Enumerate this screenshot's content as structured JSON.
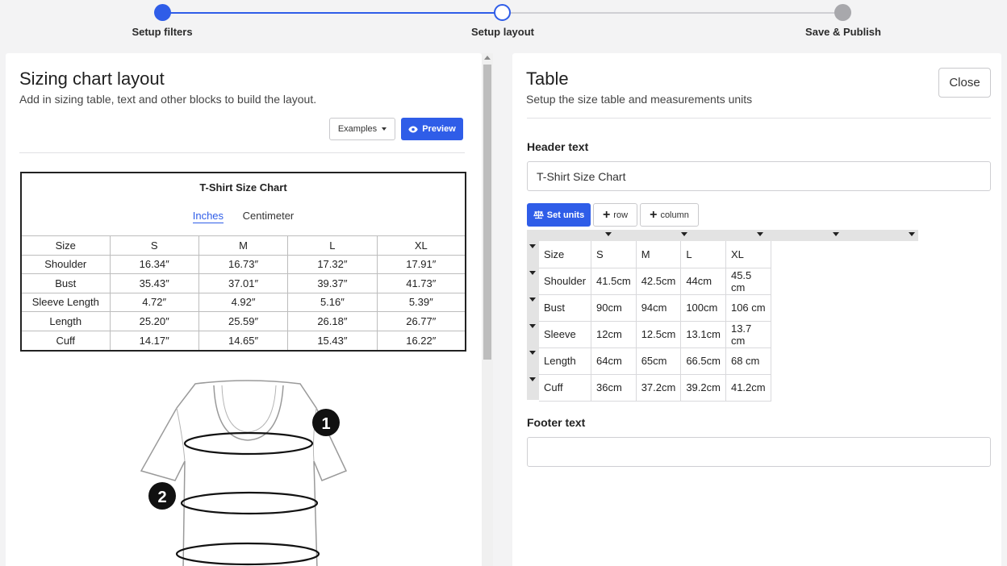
{
  "stepper": {
    "steps": [
      {
        "label": "Setup filters",
        "state": "done"
      },
      {
        "label": "Setup layout",
        "state": "current"
      },
      {
        "label": "Save & Publish",
        "state": "todo"
      }
    ],
    "accent": "#2f5de8"
  },
  "left": {
    "title": "Sizing chart layout",
    "subtitle": "Add in sizing table, text and other blocks to build the layout.",
    "examples_label": "Examples",
    "preview_label": "Preview",
    "preview_card": {
      "title": "T-Shirt Size Chart",
      "tabs": [
        "Inches",
        "Centimeter"
      ],
      "active_tab": "Inches",
      "header": [
        "Size",
        "S",
        "M",
        "L",
        "XL"
      ],
      "rows": [
        [
          "Shoulder",
          "16.34″",
          "16.73″",
          "17.32″",
          "17.91″"
        ],
        [
          "Bust",
          "35.43″",
          "37.01″",
          "39.37″",
          "41.73″"
        ],
        [
          "Sleeve Length",
          "4.72″",
          "4.92″",
          "5.16″",
          "5.39″"
        ],
        [
          "Length",
          "25.20″",
          "25.59″",
          "26.18″",
          "26.77″"
        ],
        [
          "Cuff",
          "14.17″",
          "14.65″",
          "15.43″",
          "16.22″"
        ]
      ]
    },
    "diagram_markers": [
      "1",
      "2"
    ]
  },
  "right": {
    "title": "Table",
    "subtitle": "Setup the size table and measurements units",
    "close_label": "Close",
    "header_label": "Header text",
    "header_value": "T-Shirt Size Chart",
    "set_units_label": "Set units",
    "row_label": "row",
    "column_label": "column",
    "table": {
      "header": [
        "Size",
        "S",
        "M",
        "L",
        "XL"
      ],
      "rows": [
        [
          "Shoulder",
          "41.5cm",
          "42.5cm",
          "44cm",
          "45.5 cm"
        ],
        [
          "Bust",
          "90cm",
          "94cm",
          "100cm",
          "106 cm"
        ],
        [
          "Sleeve",
          "12cm",
          "12.5cm",
          "13.1cm",
          "13.7 cm"
        ],
        [
          "Length",
          "64cm",
          "65cm",
          "66.5cm",
          "68 cm"
        ],
        [
          "Cuff",
          "36cm",
          "37.2cm",
          "39.2cm",
          "41.2cm"
        ]
      ]
    },
    "footer_label": "Footer text",
    "footer_value": ""
  }
}
